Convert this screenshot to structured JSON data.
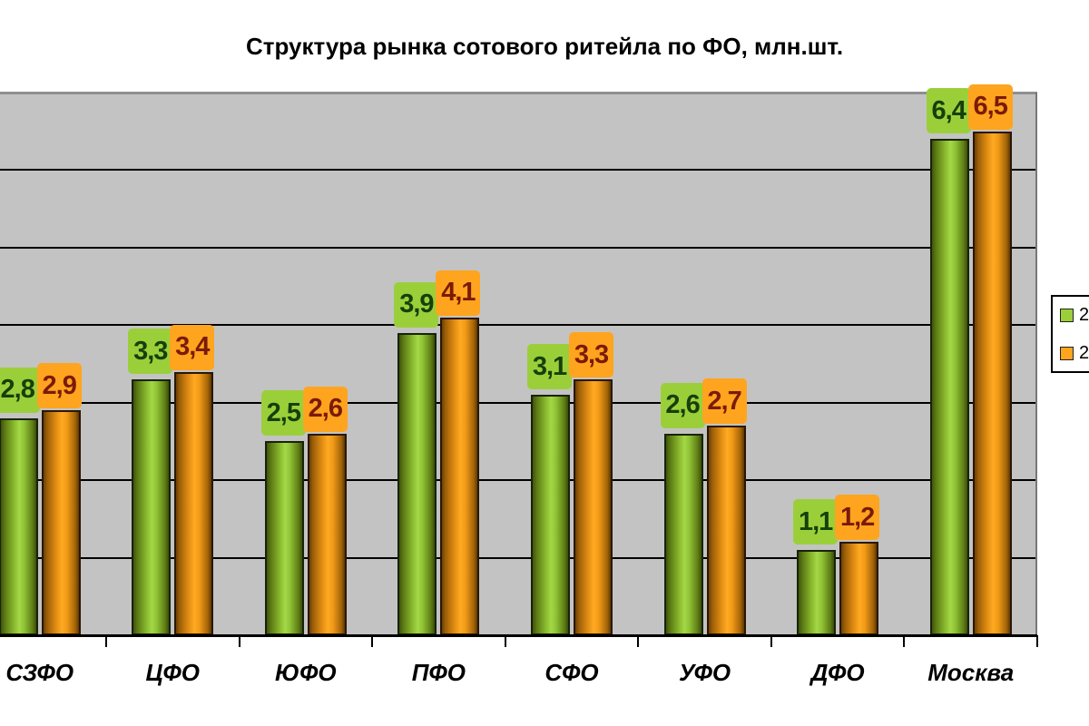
{
  "title": "Структура рынка сотового ритейла по ФО, млн.шт.",
  "legend": {
    "position": "right",
    "clipped": true,
    "entries": [
      {
        "label": "2",
        "series_index": 0
      },
      {
        "label": "2",
        "series_index": 1
      }
    ]
  },
  "colors": {
    "page_background": "#ffffff",
    "plot_background": "#c3c3c3",
    "gridline": "#000000",
    "axis": "#000000",
    "plot_border": "#8f8f8f",
    "green_series": "#9bcf3a",
    "green_label_text": "#15400a",
    "orange_series": "#ffa41e",
    "orange_label_text": "#7b1a06"
  },
  "chart_data": {
    "type": "bar",
    "title": "Структура рынка сотового ритейла по ФО, млн.шт.",
    "categories": [
      "СЗФО",
      "ЦФО",
      "ЮФО",
      "ПФО",
      "СФО",
      "УФО",
      "ДФО",
      "Москва"
    ],
    "series": [
      {
        "name": "2",
        "color": "#9bcf3a",
        "values": [
          2.8,
          3.3,
          2.5,
          3.9,
          3.1,
          2.6,
          1.1,
          6.4
        ],
        "labels": [
          "2,8",
          "3,3",
          "2,5",
          "3,9",
          "3,1",
          "2,6",
          "1,1",
          "6,4"
        ]
      },
      {
        "name": "2",
        "color": "#ffa41e",
        "values": [
          2.9,
          3.4,
          2.6,
          4.1,
          3.3,
          2.7,
          1.2,
          6.5
        ],
        "labels": [
          "2,9",
          "3,4",
          "2,6",
          "4,1",
          "3,3",
          "2,7",
          "1,2",
          "6,5"
        ]
      }
    ],
    "xlabel": "",
    "ylabel": "",
    "units": "млн.шт.",
    "ylim": [
      0,
      7
    ],
    "gridline_values": [
      1,
      2,
      3,
      4,
      5,
      6
    ],
    "grid": true,
    "y_axis_labels_visible": false,
    "data_labels_visible": true,
    "decimal_separator": ",",
    "legend_position": "right"
  }
}
